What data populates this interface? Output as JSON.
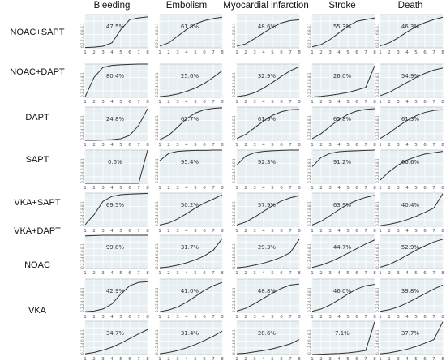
{
  "chart_data": {
    "type": "line",
    "columns": [
      "Bleeding",
      "Embolism",
      "Myocardial infarction",
      "Stroke",
      "Death"
    ],
    "rows": [
      "NOAC+SAPT",
      "NOAC+DAPT",
      "DAPT",
      "SAPT",
      "VKA+SAPT",
      "VKA+DAPT",
      "NOAC",
      "VKA"
    ],
    "x_ticks": [
      "1",
      "2",
      "3",
      "4",
      "5",
      "6",
      "7",
      "8"
    ],
    "y_tick_label": "0.2.2.4.6.8.8.1",
    "ylim": [
      0,
      1
    ],
    "grid": true,
    "panels": [
      [
        {
          "label": "47.5%",
          "x": [
            1,
            2,
            3,
            4,
            5,
            6,
            7,
            8
          ],
          "y": [
            0.01,
            0.02,
            0.05,
            0.15,
            0.55,
            0.85,
            0.9,
            0.93
          ]
        },
        {
          "label": "61.8%",
          "x": [
            1,
            2,
            3,
            4,
            5,
            6,
            7,
            8
          ],
          "y": [
            0.05,
            0.15,
            0.35,
            0.55,
            0.72,
            0.82,
            0.88,
            0.92
          ]
        },
        {
          "label": "48.6%",
          "x": [
            1,
            2,
            3,
            4,
            5,
            6,
            7,
            8
          ],
          "y": [
            0.05,
            0.12,
            0.28,
            0.45,
            0.62,
            0.75,
            0.82,
            0.84
          ]
        },
        {
          "label": "55.3%",
          "x": [
            1,
            2,
            3,
            4,
            5,
            6,
            7,
            8
          ],
          "y": [
            0.03,
            0.1,
            0.25,
            0.45,
            0.65,
            0.8,
            0.85,
            0.9
          ]
        },
        {
          "label": "46.3%",
          "x": [
            1,
            2,
            3,
            4,
            5,
            6,
            7,
            8
          ],
          "y": [
            0.06,
            0.15,
            0.3,
            0.48,
            0.64,
            0.76,
            0.85,
            0.92
          ]
        }
      ],
      [
        {
          "label": "80.4%",
          "x": [
            1,
            2,
            3,
            4,
            5,
            6,
            7,
            8
          ],
          "y": [
            0.02,
            0.6,
            0.9,
            0.96,
            0.98,
            0.99,
            1.0,
            1.0
          ]
        },
        {
          "label": "25.6%",
          "x": [
            1,
            2,
            3,
            4,
            5,
            6,
            7,
            8
          ],
          "y": [
            0.02,
            0.05,
            0.1,
            0.18,
            0.28,
            0.42,
            0.6,
            0.8
          ]
        },
        {
          "label": "32.9%",
          "x": [
            1,
            2,
            3,
            4,
            5,
            6,
            7,
            8
          ],
          "y": [
            0.02,
            0.06,
            0.14,
            0.28,
            0.45,
            0.63,
            0.8,
            0.92
          ]
        },
        {
          "label": "26.0%",
          "x": [
            1,
            2,
            3,
            4,
            5,
            6,
            7,
            8
          ],
          "y": [
            0.01,
            0.03,
            0.06,
            0.1,
            0.15,
            0.22,
            0.3,
            0.95
          ]
        },
        {
          "label": "54.9%",
          "x": [
            1,
            2,
            3,
            4,
            5,
            6,
            7,
            8
          ],
          "y": [
            0.05,
            0.15,
            0.3,
            0.45,
            0.6,
            0.72,
            0.82,
            0.88
          ]
        }
      ],
      [
        {
          "label": "24.8%",
          "x": [
            1,
            2,
            3,
            4,
            5,
            6,
            7,
            8
          ],
          "y": [
            0.0,
            0.0,
            0.01,
            0.02,
            0.05,
            0.15,
            0.45,
            0.95
          ]
        },
        {
          "label": "62.7%",
          "x": [
            1,
            2,
            3,
            4,
            5,
            6,
            7,
            8
          ],
          "y": [
            0.02,
            0.15,
            0.4,
            0.65,
            0.82,
            0.92,
            0.96,
            0.98
          ]
        },
        {
          "label": "61.9%",
          "x": [
            1,
            2,
            3,
            4,
            5,
            6,
            7,
            8
          ],
          "y": [
            0.05,
            0.18,
            0.38,
            0.58,
            0.75,
            0.86,
            0.92,
            0.93
          ]
        },
        {
          "label": "65.8%",
          "x": [
            1,
            2,
            3,
            4,
            5,
            6,
            7,
            8
          ],
          "y": [
            0.05,
            0.2,
            0.42,
            0.62,
            0.78,
            0.88,
            0.93,
            0.95
          ]
        },
        {
          "label": "61.3%",
          "x": [
            1,
            2,
            3,
            4,
            5,
            6,
            7,
            8
          ],
          "y": [
            0.06,
            0.22,
            0.42,
            0.6,
            0.74,
            0.84,
            0.9,
            0.92
          ]
        }
      ],
      [
        {
          "label": "0.5%",
          "x": [
            1,
            2,
            3,
            4,
            5,
            6,
            7,
            8
          ],
          "y": [
            0.0,
            0.0,
            0.0,
            0.0,
            0.0,
            0.0,
            0.0,
            1.0
          ]
        },
        {
          "label": "95.4%",
          "x": [
            1,
            2,
            3,
            4,
            5,
            6,
            7,
            8
          ],
          "y": [
            0.68,
            0.9,
            0.96,
            0.98,
            0.99,
            0.99,
            1.0,
            1.0
          ]
        },
        {
          "label": "92.3%",
          "x": [
            1,
            2,
            3,
            4,
            5,
            6,
            7,
            8
          ],
          "y": [
            0.55,
            0.82,
            0.92,
            0.96,
            0.98,
            0.99,
            1.0,
            1.0
          ]
        },
        {
          "label": "91.2%",
          "x": [
            1,
            2,
            3,
            4,
            5,
            6,
            7,
            8
          ],
          "y": [
            0.5,
            0.78,
            0.9,
            0.95,
            0.97,
            0.98,
            0.99,
            1.0
          ]
        },
        {
          "label": "66.6%",
          "x": [
            1,
            2,
            3,
            4,
            5,
            6,
            7,
            8
          ],
          "y": [
            0.1,
            0.35,
            0.55,
            0.7,
            0.8,
            0.88,
            0.92,
            0.96
          ]
        }
      ],
      [
        {
          "label": "69.5%",
          "x": [
            1,
            2,
            3,
            4,
            5,
            6,
            7,
            8
          ],
          "y": [
            0.05,
            0.35,
            0.75,
            0.9,
            0.95,
            0.97,
            0.98,
            0.99
          ]
        },
        {
          "label": "50.2%",
          "x": [
            1,
            2,
            3,
            4,
            5,
            6,
            7,
            8
          ],
          "y": [
            0.04,
            0.1,
            0.22,
            0.38,
            0.55,
            0.7,
            0.82,
            0.95
          ]
        },
        {
          "label": "57.9%",
          "x": [
            1,
            2,
            3,
            4,
            5,
            6,
            7,
            8
          ],
          "y": [
            0.04,
            0.13,
            0.28,
            0.45,
            0.62,
            0.76,
            0.86,
            0.92
          ]
        },
        {
          "label": "63.9%",
          "x": [
            1,
            2,
            3,
            4,
            5,
            6,
            7,
            8
          ],
          "y": [
            0.04,
            0.15,
            0.32,
            0.5,
            0.66,
            0.78,
            0.87,
            0.93
          ]
        },
        {
          "label": "40.4%",
          "x": [
            1,
            2,
            3,
            4,
            5,
            6,
            7,
            8
          ],
          "y": [
            0.02,
            0.06,
            0.12,
            0.2,
            0.3,
            0.42,
            0.55,
            0.98
          ]
        }
      ],
      [
        {
          "label": "99.8%",
          "x": [
            1,
            2,
            3,
            4,
            5,
            6,
            7,
            8
          ],
          "y": [
            0.98,
            0.99,
            1.0,
            1.0,
            1.0,
            1.0,
            1.0,
            1.0
          ]
        },
        {
          "label": "31.7%",
          "x": [
            1,
            2,
            3,
            4,
            5,
            6,
            7,
            8
          ],
          "y": [
            0.02,
            0.05,
            0.1,
            0.17,
            0.26,
            0.38,
            0.55,
            0.9
          ]
        },
        {
          "label": "29.3%",
          "x": [
            1,
            2,
            3,
            4,
            5,
            6,
            7,
            8
          ],
          "y": [
            0.02,
            0.05,
            0.1,
            0.16,
            0.24,
            0.34,
            0.48,
            0.88
          ]
        },
        {
          "label": "44.7%",
          "x": [
            1,
            2,
            3,
            4,
            5,
            6,
            7,
            8
          ],
          "y": [
            0.03,
            0.1,
            0.2,
            0.32,
            0.46,
            0.6,
            0.74,
            0.86
          ]
        },
        {
          "label": "52.9%",
          "x": [
            1,
            2,
            3,
            4,
            5,
            6,
            7,
            8
          ],
          "y": [
            0.04,
            0.12,
            0.25,
            0.4,
            0.55,
            0.68,
            0.8,
            0.88
          ]
        }
      ],
      [
        {
          "label": "42.9%",
          "x": [
            1,
            2,
            3,
            4,
            5,
            6,
            7,
            8
          ],
          "y": [
            0.02,
            0.04,
            0.1,
            0.25,
            0.55,
            0.8,
            0.9,
            0.92
          ]
        },
        {
          "label": "41.0%",
          "x": [
            1,
            2,
            3,
            4,
            5,
            6,
            7,
            8
          ],
          "y": [
            0.02,
            0.07,
            0.16,
            0.3,
            0.48,
            0.66,
            0.8,
            0.9
          ]
        },
        {
          "label": "48.8%",
          "x": [
            1,
            2,
            3,
            4,
            5,
            6,
            7,
            8
          ],
          "y": [
            0.04,
            0.12,
            0.26,
            0.42,
            0.58,
            0.72,
            0.82,
            0.85
          ]
        },
        {
          "label": "46.0%",
          "x": [
            1,
            2,
            3,
            4,
            5,
            6,
            7,
            8
          ],
          "y": [
            0.03,
            0.1,
            0.22,
            0.38,
            0.55,
            0.7,
            0.8,
            0.84
          ]
        },
        {
          "label": "39.8%",
          "x": [
            1,
            2,
            3,
            4,
            5,
            6,
            7,
            8
          ],
          "y": [
            0.03,
            0.08,
            0.16,
            0.28,
            0.42,
            0.56,
            0.7,
            0.82
          ]
        }
      ],
      [
        {
          "label": "34.7%",
          "x": [
            1,
            2,
            3,
            4,
            5,
            6,
            7,
            8
          ],
          "y": [
            0.02,
            0.06,
            0.13,
            0.22,
            0.34,
            0.48,
            0.62,
            0.75
          ]
        },
        {
          "label": "31.4%",
          "x": [
            1,
            2,
            3,
            4,
            5,
            6,
            7,
            8
          ],
          "y": [
            0.02,
            0.06,
            0.12,
            0.2,
            0.3,
            0.42,
            0.55,
            0.7
          ]
        },
        {
          "label": "28.6%",
          "x": [
            1,
            2,
            3,
            4,
            5,
            6,
            7,
            8
          ],
          "y": [
            0.02,
            0.04,
            0.08,
            0.12,
            0.17,
            0.24,
            0.32,
            0.45
          ]
        },
        {
          "label": "7.1%",
          "x": [
            1,
            2,
            3,
            4,
            5,
            6,
            7,
            8
          ],
          "y": [
            0.0,
            0.01,
            0.02,
            0.03,
            0.05,
            0.08,
            0.12,
            0.98
          ]
        },
        {
          "label": "37.7%",
          "x": [
            1,
            2,
            3,
            4,
            5,
            6,
            7,
            8
          ],
          "y": [
            0.02,
            0.05,
            0.1,
            0.16,
            0.24,
            0.34,
            0.45,
            0.98
          ]
        }
      ]
    ]
  }
}
